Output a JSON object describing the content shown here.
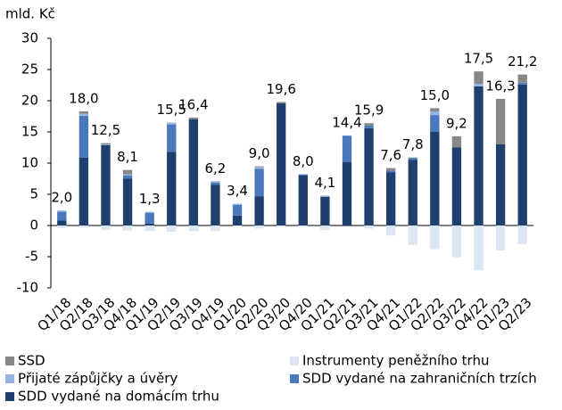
{
  "chart_data": {
    "type": "stacked_bar",
    "y_label": "mld. Kč",
    "categories": [
      "Q1/18",
      "Q2/18",
      "Q3/18",
      "Q4/18",
      "Q1/19",
      "Q2/19",
      "Q3/19",
      "Q4/19",
      "Q1/20",
      "Q2/20",
      "Q3/20",
      "Q4/20",
      "Q1/21",
      "Q2/21",
      "Q3/21",
      "Q4/21",
      "Q1/22",
      "Q2/22",
      "Q3/22",
      "Q4/22",
      "Q1/23",
      "Q2/23"
    ],
    "series": [
      {
        "name": "SSD",
        "color": "#878787",
        "values": [
          0,
          0.4,
          0.2,
          0.7,
          0,
          0,
          0.3,
          0,
          0,
          0.1,
          0.2,
          0,
          0,
          0,
          0.4,
          0.4,
          0.1,
          0.5,
          1.8,
          2.0,
          7.3,
          1.3
        ]
      },
      {
        "name": "Instrumenty peněžního trhu",
        "color": "#dce6f2",
        "values": [
          -0.4,
          -0.3,
          -0.7,
          -0.8,
          -0.9,
          -1.0,
          -0.9,
          -0.9,
          -0.1,
          -0.5,
          -0.2,
          -0.2,
          -0.7,
          0,
          -0.5,
          -1.6,
          -3.1,
          -3.8,
          -5.1,
          -7.2,
          -4.0,
          -3.0
        ]
      },
      {
        "name": "Přijaté zápůjčky a úvěry",
        "color": "#95b3de",
        "values": [
          0.2,
          0.3,
          0.1,
          0.2,
          0.2,
          0.3,
          0,
          0.2,
          0.2,
          0.3,
          0,
          0,
          0.2,
          0,
          0,
          0,
          0,
          0.6,
          0,
          0.4,
          0,
          0
        ]
      },
      {
        "name": "SDD vydané na zahraničních trzích",
        "color": "#4a78bd",
        "values": [
          1.4,
          6.7,
          0,
          0.5,
          1.7,
          4.4,
          0,
          0.4,
          1.7,
          4.4,
          0,
          0.2,
          0,
          4.2,
          0.4,
          0.3,
          0.3,
          2.7,
          0,
          0,
          0,
          0.3
        ]
      },
      {
        "name": "SDD vydané na domácím trhu",
        "color": "#1f3f6e",
        "values": [
          0.8,
          10.9,
          12.9,
          7.5,
          0.3,
          11.8,
          17.0,
          6.5,
          1.6,
          4.7,
          19.6,
          8.0,
          4.6,
          10.2,
          15.6,
          8.5,
          10.5,
          15.0,
          12.5,
          22.3,
          13.0,
          22.6
        ]
      }
    ],
    "totals": {
      "values": [
        2.0,
        18.0,
        12.5,
        8.1,
        1.3,
        15.5,
        16.4,
        6.2,
        3.4,
        9.0,
        19.6,
        8.0,
        4.1,
        14.4,
        15.9,
        7.6,
        7.8,
        15.0,
        9.2,
        17.5,
        16.3,
        21.2
      ],
      "value_labels": [
        "2,0",
        "18,0",
        "12,5",
        "8,1",
        "1,3",
        "15,5",
        "16,4",
        "6,2",
        "3,4",
        "9,0",
        "19,6",
        "8,0",
        "4,1",
        "14,4",
        "15,9",
        "7,6",
        "7,8",
        "15,0",
        "9,2",
        "17,5",
        "16,3",
        "21,2"
      ]
    },
    "ylim": [
      -10,
      30
    ],
    "yticks": [
      -10,
      -5,
      0,
      5,
      10,
      15,
      20,
      25,
      30
    ],
    "grid": false,
    "legend": "bottom"
  }
}
